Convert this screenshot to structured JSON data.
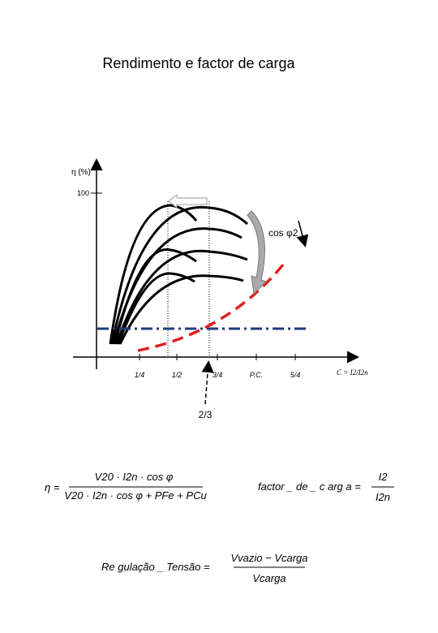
{
  "title": "Rendimento e factor de carga",
  "axes": {
    "y_label": "η (%)",
    "y_tick": "100",
    "x_ticks": [
      "1/4",
      "1/2",
      "3/4",
      "P.C.",
      "5/4"
    ],
    "x_label": "C = I2/I2n"
  },
  "annotations": {
    "cos_phi": "cos φ2",
    "two_thirds": "2/3"
  },
  "formulas": {
    "efficiency": {
      "lhs": "η =",
      "numerator": "V20 · I2n · cos φ",
      "denominator": "V20 · I2n · cos φ + PFe + PCu"
    },
    "load_factor": {
      "lhs": "factor _ de _ c arg a =",
      "numerator": "I2",
      "denominator": "I2n"
    },
    "regulation": {
      "lhs": "Re gulação _ Tensão =",
      "numerator": "Vvazio − Vcarga",
      "denominator": "Vcarga"
    }
  }
}
